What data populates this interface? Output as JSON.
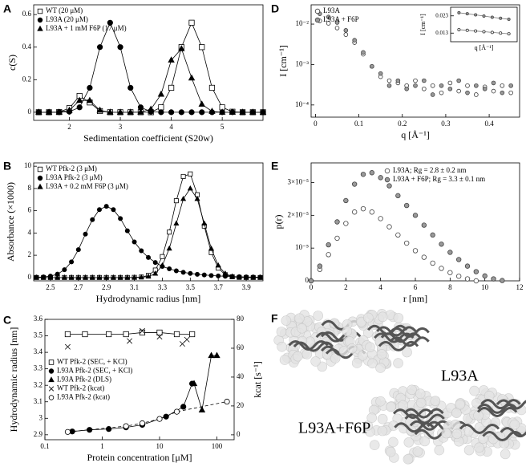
{
  "chart_data": [
    {
      "type": "line",
      "panel": "A",
      "xlabel": "Sedimentation coefficient (S20w)",
      "ylabel": "c(S)",
      "legend": "upper left",
      "x": [
        1.4,
        1.6,
        1.8,
        2.0,
        2.2,
        2.4,
        2.6,
        2.8,
        3.0,
        3.2,
        3.4,
        3.6,
        3.8,
        4.0,
        4.2,
        4.4,
        4.6,
        4.8,
        5.0,
        5.2,
        5.4,
        5.6,
        5.8
      ],
      "xlim": [
        1.3,
        5.8
      ],
      "xticks": [
        2,
        3,
        4,
        5
      ],
      "ylim": [
        -0.05,
        0.66
      ],
      "yticks": [
        0,
        0.2,
        0.4,
        0.6
      ],
      "series": [
        {
          "name": "WT (20 μM)",
          "color": "#000000",
          "marker": "square",
          "marker_fill": "#ffffff",
          "line": "solid",
          "values": [
            0,
            0,
            0.001,
            0.025,
            0.1,
            0.06,
            0.007,
            0,
            0,
            0,
            0,
            0,
            0.03,
            0.15,
            0.4,
            0.55,
            0.4,
            0.15,
            0.03,
            0.003,
            0,
            0,
            0
          ]
        },
        {
          "name": "L93A (20 μM)",
          "color": "#000000",
          "marker": "circle",
          "marker_fill": "#000000",
          "line": "solid",
          "values": [
            0,
            0,
            0,
            0.003,
            0.03,
            0.15,
            0.4,
            0.55,
            0.4,
            0.15,
            0.03,
            0.003,
            0,
            0,
            0,
            0,
            0,
            0,
            0,
            0,
            0,
            0,
            0
          ]
        },
        {
          "name": "L93A + 1 mM F6P (17 μM)",
          "color": "#000000",
          "marker": "triangle",
          "marker_fill": "#000000",
          "line": "solid",
          "values": [
            0,
            0,
            0,
            0.012,
            0.072,
            0.072,
            0.012,
            0,
            0,
            0,
            0.001,
            0.018,
            0.11,
            0.32,
            0.39,
            0.21,
            0.049,
            0.005,
            0,
            0,
            0,
            0,
            0
          ]
        }
      ]
    },
    {
      "type": "line",
      "panel": "B",
      "xlabel": "Hydrodynamic radius [nm]",
      "ylabel": "Absorbance (×1000)",
      "legend": "upper left",
      "x": [
        2.4,
        2.45,
        2.5,
        2.55,
        2.6,
        2.65,
        2.7,
        2.75,
        2.8,
        2.85,
        2.9,
        2.95,
        3.0,
        3.05,
        3.1,
        3.15,
        3.2,
        3.25,
        3.3,
        3.35,
        3.4,
        3.45,
        3.5,
        3.55,
        3.6,
        3.65,
        3.7,
        3.75,
        3.8,
        3.85,
        3.9,
        3.95,
        4.0
      ],
      "xlim": [
        2.38,
        4.02
      ],
      "xticks": [
        2.5,
        2.7,
        2.9,
        3.1,
        3.3,
        3.5,
        3.7,
        3.9
      ],
      "ylim": [
        -0.3,
        10.3
      ],
      "yticks": [
        0,
        2,
        4,
        6,
        8,
        10
      ],
      "series": [
        {
          "name": "WT Pfk-2 (3 μM)",
          "color": "#000000",
          "marker": "square",
          "marker_fill": "#ffffff",
          "line": "solid",
          "values": [
            0,
            0,
            0,
            0,
            0,
            0,
            0,
            0,
            0,
            0,
            0,
            0,
            0,
            0,
            0.01,
            0.04,
            0.19,
            0.67,
            1.88,
            4.08,
            6.9,
            9.08,
            9.31,
            7.44,
            4.62,
            2.24,
            0.84,
            0.25,
            0.06,
            0.01,
            0,
            0,
            0
          ]
        },
        {
          "name": "L93A Pfk-2 (3 μM)",
          "color": "#000000",
          "marker": "circle",
          "marker_fill": "#000000",
          "line": "solid",
          "values": [
            0.02,
            0.05,
            0.12,
            0.3,
            0.7,
            1.4,
            2.5,
            3.9,
            5.2,
            6.1,
            6.4,
            6.1,
            5.3,
            4.2,
            3.2,
            2.4,
            1.8,
            1.35,
            1.0,
            0.78,
            0.6,
            0.47,
            0.37,
            0.29,
            0.23,
            0.18,
            0.14,
            0.11,
            0.09,
            0.07,
            0.05,
            0.04,
            0.03
          ]
        },
        {
          "name": "L93A + 0.2 mM F6P (3 μM)",
          "color": "#000000",
          "marker": "triangle",
          "marker_fill": "#000000",
          "line": "solid",
          "values": [
            0,
            0,
            0,
            0,
            0,
            0,
            0,
            0,
            0,
            0,
            0,
            0,
            0,
            0,
            0,
            0.02,
            0.09,
            0.35,
            1.08,
            2.6,
            4.85,
            7.06,
            8,
            7.06,
            4.85,
            2.6,
            1.08,
            0.35,
            0.09,
            0.02,
            0,
            0,
            0
          ]
        }
      ]
    },
    {
      "type": "line",
      "panel": "C",
      "xlabel": "Protein concentration [μM]",
      "ylabel": "Hydrodynamic radius [nm]",
      "y2label": "kcat [s⁻¹]",
      "legend": "center left",
      "xscale": "log",
      "xlim": [
        0.1,
        200
      ],
      "xticks": [
        0.1,
        1,
        10,
        100
      ],
      "ylim": [
        2.87,
        3.6
      ],
      "yticks": [
        2.9,
        3,
        3.1,
        3.2,
        3.3,
        3.4,
        3.5,
        3.6
      ],
      "y2lim": [
        -3.4,
        80
      ],
      "y2ticks": [
        0,
        20,
        40,
        60,
        80
      ],
      "series": [
        {
          "name": "WT Pfk-2 (SEC, + KCl)",
          "color": "#000000",
          "marker": "square",
          "marker_fill": "#ffffff",
          "line": "solid",
          "x": [
            0.25,
            0.5,
            1.3,
            2.6,
            5,
            10,
            20,
            37
          ],
          "values": [
            3.51,
            3.51,
            3.51,
            3.51,
            3.52,
            3.52,
            3.51,
            3.51
          ]
        },
        {
          "name": "L93A Pfk-2 (SEC, + KCl)",
          "color": "#000000",
          "marker": "circle",
          "marker_fill": "#000000",
          "line": "solid",
          "x": [
            0.3,
            0.6,
            1.3,
            2.6,
            5,
            13,
            26,
            37
          ],
          "values": [
            2.92,
            2.93,
            2.935,
            2.945,
            2.96,
            3.01,
            3.07,
            3.21
          ]
        },
        {
          "name": "L93A Pfk-2 (DLS)",
          "color": "#000000",
          "marker": "triangle",
          "marker_fill": "#000000",
          "line": "solid",
          "x": [
            40,
            55,
            80,
            100
          ],
          "values": [
            3.21,
            3.05,
            3.38,
            3.38
          ]
        },
        {
          "name": "WT Pfk-2 (kcat)",
          "color": "#000000",
          "marker": "cross",
          "marker_fill": "none",
          "line": "none",
          "axis": "y2",
          "x": [
            0.25,
            3,
            5,
            10,
            25,
            30
          ],
          "values": [
            61,
            65,
            72,
            68,
            63,
            66
          ]
        },
        {
          "name": "L93A Pfk-2 (kcat)",
          "color": "#000000",
          "marker": "circle",
          "marker_fill": "#ffffff",
          "line": "dashed",
          "axis": "y2",
          "x": [
            0.25,
            2.6,
            5,
            10,
            20,
            150
          ],
          "values": [
            2,
            6,
            8,
            11,
            16,
            23
          ]
        }
      ]
    },
    {
      "type": "scatter",
      "panel": "D",
      "xlabel": "q [Å⁻¹]",
      "ylabel": "I [cm⁻¹]",
      "legend": "upper left",
      "x": [
        0.01,
        0.03,
        0.05,
        0.07,
        0.09,
        0.11,
        0.13,
        0.15,
        0.17,
        0.19,
        0.21,
        0.23,
        0.25,
        0.27,
        0.29,
        0.31,
        0.33,
        0.35,
        0.37,
        0.39,
        0.41,
        0.43,
        0.45
      ],
      "xlim": [
        -0.01,
        0.47
      ],
      "xticks": [
        0,
        0.1,
        0.2,
        0.3,
        0.4
      ],
      "yscale": "log",
      "ylim": [
        5e-05,
        0.03
      ],
      "yticks": [
        {
          "value": 0.0001,
          "label": "10⁻⁴"
        },
        {
          "value": 0.001,
          "label": "10⁻³"
        },
        {
          "value": 0.01,
          "label": "10⁻²"
        }
      ],
      "series": [
        {
          "name": "L93A",
          "color": "#333333",
          "marker": "circle",
          "marker_fill": "#ffffff",
          "line": "none",
          "values": [
            0.012,
            0.0105,
            0.008,
            0.0055,
            0.0035,
            0.0018,
            0.0009,
            0.0005,
            0.0004,
            0.00035,
            0.0003,
            0.0004,
            0.00025,
            0.0003,
            0.0002,
            0.00035,
            0.00022,
            0.0003,
            0.00018,
            0.00028,
            0.00022,
            0.0003,
            0.0002
          ]
        },
        {
          "name": "L93A + F6P",
          "color": "#444444",
          "marker": "circle",
          "marker_fill": "#999999",
          "line": "none",
          "values": [
            0.018,
            0.015,
            0.011,
            0.007,
            0.004,
            0.002,
            0.0009,
            0.0006,
            0.0003,
            0.0004,
            0.00025,
            0.0003,
            0.0004,
            0.00018,
            0.0003,
            0.00025,
            0.0004,
            0.0002,
            0.0003,
            0.00025,
            0.00035,
            0.0002,
            0.0003
          ]
        }
      ]
    },
    {
      "type": "line",
      "xlabel": "q [Å⁻¹]",
      "ylabel": "I [cm⁻¹]",
      "x": [
        0.01,
        0.015,
        0.02,
        0.025,
        0.03,
        0.035,
        0.04
      ],
      "xlim": [
        0.005,
        0.045
      ],
      "ylim": [
        0.008,
        0.028
      ],
      "yticks": [
        0.013,
        0.023
      ],
      "series": [
        {
          "color": "#444444",
          "marker": "circle",
          "marker_fill": "#999999",
          "line": "solid",
          "values": [
            0.0248,
            0.0242,
            0.0236,
            0.0229,
            0.0222,
            0.0216,
            0.021
          ]
        },
        {
          "color": "#333333",
          "marker": "circle",
          "marker_fill": "#ffffff",
          "line": "solid",
          "values": [
            0.015,
            0.0146,
            0.0142,
            0.0138,
            0.0134,
            0.013,
            0.0126
          ]
        }
      ]
    },
    {
      "type": "line",
      "panel": "E",
      "xlabel": "r [nm]",
      "ylabel": "p(r)",
      "legend": "upper right",
      "xlim": [
        0,
        12
      ],
      "xticks": [
        0,
        2,
        4,
        6,
        8,
        10,
        12
      ],
      "ylim": [
        0,
        3.6e-05
      ],
      "yticks": [
        0,
        {
          "value": 1e-05,
          "label": "10⁻⁵"
        },
        {
          "value": 2e-05,
          "label": "2×10⁻⁵"
        },
        {
          "value": 3e-05,
          "label": "3×10⁻⁵"
        }
      ],
      "series": [
        {
          "name": "L93A; Rg = 2.8 ± 0.2 nm",
          "color": "#444444",
          "marker": "circle",
          "marker_fill": "#ffffff",
          "line": "none",
          "x": [
            0,
            0.5,
            1,
            1.5,
            2,
            2.5,
            3,
            3.5,
            4,
            4.5,
            5,
            5.5,
            6,
            6.5,
            7,
            7.5,
            8,
            8.5,
            9,
            9.5
          ],
          "values": [
            0,
            3.5e-06,
            8e-06,
            1.3e-05,
            1.75e-05,
            2.1e-05,
            2.2e-05,
            2.1e-05,
            1.9e-05,
            1.65e-05,
            1.4e-05,
            1.15e-05,
            9.2e-06,
            7.2e-06,
            5.4e-06,
            3.8e-06,
            2.5e-06,
            1.4e-06,
            6e-07,
            0
          ]
        },
        {
          "name": "L93A + F6P; Rg = 3.3 ± 0.1 nm",
          "color": "#444444",
          "marker": "circle",
          "marker_fill": "#999999",
          "line": "none",
          "x": [
            0,
            0.5,
            1,
            1.5,
            2,
            2.5,
            3,
            3.5,
            4,
            4.5,
            5,
            5.5,
            6,
            6.5,
            7,
            7.5,
            8,
            8.5,
            9,
            9.5,
            10,
            10.5,
            11
          ],
          "values": [
            0,
            4.5e-06,
            1.1e-05,
            1.8e-05,
            2.45e-05,
            2.95e-05,
            3.25e-05,
            3.3e-05,
            3.15e-05,
            2.9e-05,
            2.6e-05,
            2.3e-05,
            2e-05,
            1.7e-05,
            1.4e-05,
            1.12e-05,
            8.7e-06,
            6.5e-06,
            4.5e-06,
            2.8e-06,
            1.5e-06,
            6e-07,
            1e-07
          ]
        }
      ]
    }
  ],
  "figure_f": {
    "panel": "F",
    "labels": [
      "L93A",
      "L93A+F6P"
    ]
  }
}
